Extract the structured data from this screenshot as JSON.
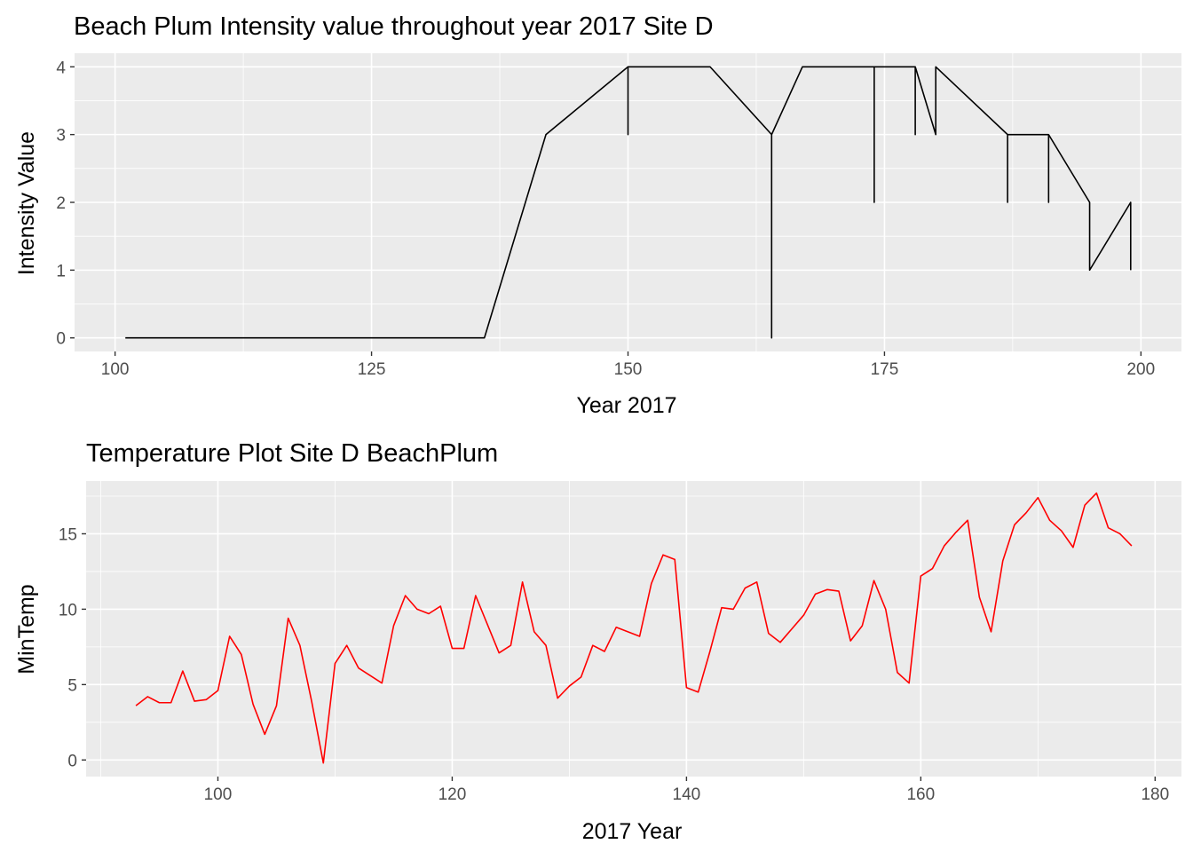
{
  "chart_data": [
    {
      "type": "line",
      "title": "Beach Plum Intensity value throughout year 2017 Site D",
      "xlabel": "Year 2017",
      "ylabel": "Intensity Value",
      "xlim": [
        96.05,
        203.95
      ],
      "ylim": [
        -0.2,
        4.2
      ],
      "x_ticks": [
        100,
        125,
        150,
        175,
        200
      ],
      "y_ticks": [
        0,
        1,
        2,
        3,
        4
      ],
      "grid": true,
      "legend": "none",
      "series": [
        {
          "color": "#000000",
          "points": [
            [
              101,
              0
            ],
            [
              136,
              0
            ],
            [
              142,
              3
            ],
            [
              150,
              4
            ],
            [
              150,
              3
            ],
            [
              150,
              4
            ],
            [
              158,
              4
            ],
            [
              164,
              3
            ],
            [
              164,
              0
            ],
            [
              164,
              3
            ],
            [
              167,
              4
            ],
            [
              174,
              4
            ],
            [
              174,
              2
            ],
            [
              174,
              4
            ],
            [
              178,
              4
            ],
            [
              178,
              3
            ],
            [
              178,
              4
            ],
            [
              180,
              3
            ],
            [
              180,
              4
            ],
            [
              187,
              3
            ],
            [
              187,
              2
            ],
            [
              187,
              3
            ],
            [
              191,
              3
            ],
            [
              191,
              2
            ],
            [
              191,
              3
            ],
            [
              195,
              2
            ],
            [
              195,
              1
            ],
            [
              199,
              2
            ],
            [
              199,
              1
            ]
          ]
        }
      ]
    },
    {
      "type": "line",
      "title": "Temperature Plot Site D BeachPlum",
      "xlabel": "2017 Year",
      "ylabel": "MinTemp",
      "xlim": [
        88.75,
        182.25
      ],
      "ylim": [
        -1.1,
        18.5
      ],
      "x_ticks": [
        100,
        120,
        140,
        160,
        180
      ],
      "y_ticks": [
        0,
        5,
        10,
        15
      ],
      "grid": true,
      "legend": "none",
      "series": [
        {
          "color": "#ff0000",
          "x": [
            93,
            94,
            95,
            96,
            97,
            98,
            99,
            100,
            101,
            102,
            103,
            104,
            105,
            106,
            107,
            108,
            109,
            110,
            111,
            112,
            113,
            114,
            115,
            116,
            117,
            118,
            119,
            120,
            121,
            122,
            123,
            124,
            125,
            126,
            127,
            128,
            129,
            130,
            131,
            132,
            133,
            134,
            135,
            136,
            137,
            138,
            139,
            140,
            141,
            142,
            143,
            144,
            145,
            146,
            147,
            148,
            149,
            150,
            151,
            152,
            153,
            154,
            155,
            156,
            157,
            158,
            159,
            160,
            161,
            162,
            163,
            164,
            165,
            166,
            167,
            168,
            169,
            170,
            171,
            172,
            173,
            174,
            175,
            176,
            177,
            178
          ],
          "y": [
            3.6,
            4.2,
            3.8,
            3.8,
            5.9,
            3.9,
            4.0,
            4.6,
            8.2,
            7.0,
            3.7,
            1.7,
            3.6,
            9.4,
            7.6,
            3.9,
            -0.2,
            6.4,
            7.6,
            6.1,
            5.6,
            5.1,
            8.9,
            10.9,
            10.0,
            9.7,
            10.2,
            7.4,
            7.4,
            10.9,
            9.0,
            7.1,
            7.6,
            11.8,
            8.5,
            7.6,
            4.1,
            4.9,
            5.5,
            7.6,
            7.2,
            8.8,
            8.5,
            8.2,
            11.7,
            13.6,
            13.3,
            4.8,
            4.5,
            7.2,
            10.1,
            10.0,
            11.4,
            11.8,
            8.4,
            7.8,
            8.7,
            9.6,
            11.0,
            11.3,
            11.2,
            7.9,
            8.9,
            11.9,
            10.0,
            5.8,
            5.1,
            12.2,
            12.7,
            14.2,
            15.1,
            15.9,
            10.8,
            8.5,
            13.2,
            15.6,
            16.4,
            17.4,
            15.9,
            15.2,
            14.1,
            16.9,
            17.7,
            15.4,
            15.0,
            14.2
          ]
        }
      ]
    }
  ]
}
